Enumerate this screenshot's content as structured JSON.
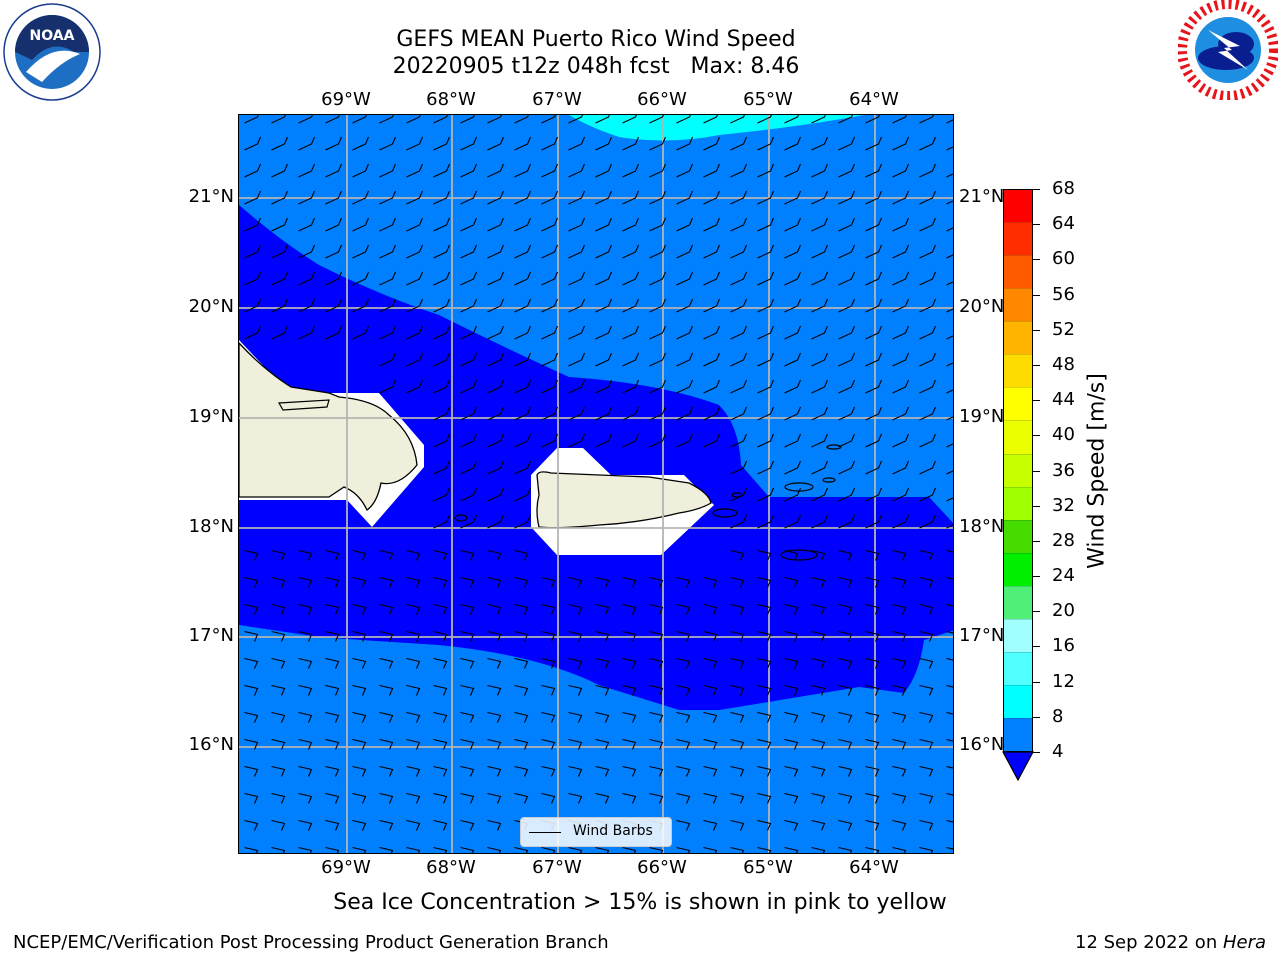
{
  "title": {
    "line1": "GEFS MEAN Puerto Rico Wind Speed",
    "line2": "20220905 t12z 048h fcst   Max: 8.46"
  },
  "map": {
    "lon_labels": [
      "69°W",
      "68°W",
      "67°W",
      "66°W",
      "65°W",
      "64°W"
    ],
    "lat_labels": [
      "21°N",
      "20°N",
      "19°N",
      "18°N",
      "17°N",
      "16°N"
    ],
    "legend_label": "Wind Barbs",
    "ocean_colors": {
      "light": "#0080ff",
      "dark": "#0000ff",
      "cyan": "#00ffff",
      "land": "#efefdb"
    }
  },
  "colorbar": {
    "label": "Wind Speed [m/s]",
    "ticks": [
      "68",
      "64",
      "60",
      "56",
      "52",
      "48",
      "44",
      "40",
      "36",
      "32",
      "28",
      "24",
      "20",
      "16",
      "12",
      "8",
      "4"
    ],
    "colors": [
      "#ff0000",
      "#ff2d00",
      "#ff5a00",
      "#ff8700",
      "#ffb400",
      "#ffdc00",
      "#ffff00",
      "#ebff00",
      "#c8ff00",
      "#a0ff00",
      "#46dc00",
      "#00f000",
      "#50f078",
      "#a0ffff",
      "#50ffff",
      "#00ffff",
      "#0080ff"
    ],
    "extend_color": "#0000ff"
  },
  "logos": {
    "left_text": "NOAA",
    "right_text": "NATIONAL WEATHER SERVICE"
  },
  "caption": "Sea Ice Concentration > 15% is shown in pink to yellow",
  "footer": {
    "left": "NCEP/EMC/Verification Post Processing Product Generation Branch",
    "right_prefix": "12 Sep 2022 on ",
    "right_host": "Hera"
  }
}
